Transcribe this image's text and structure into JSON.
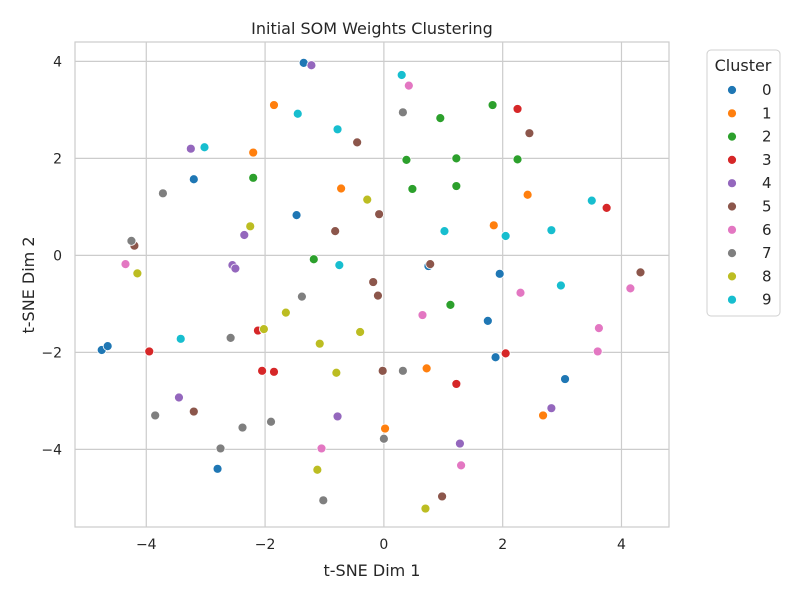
{
  "chart_data": {
    "type": "scatter",
    "title": "Initial SOM Weights Clustering",
    "xlabel": "t-SNE Dim 1",
    "ylabel": "t-SNE Dim 2",
    "xlim": [
      -5.2,
      4.8
    ],
    "ylim": [
      -5.6,
      4.4
    ],
    "xticks": [
      -4,
      -2,
      0,
      2,
      4
    ],
    "yticks": [
      -4,
      -2,
      0,
      2,
      4
    ],
    "tick_labels": {
      "x": [
        "−4",
        "−2",
        "0",
        "2",
        "4"
      ],
      "y": [
        "−4",
        "−2",
        "0",
        "2",
        "4"
      ]
    },
    "grid": true,
    "legend": {
      "title": "Cluster",
      "placement": "outside-right-top"
    },
    "series": [
      {
        "name": "0",
        "color": "#1f77b4",
        "points": [
          [
            -1.35,
            3.97
          ],
          [
            -3.2,
            1.57
          ],
          [
            -1.47,
            0.83
          ],
          [
            -4.75,
            -1.95
          ],
          [
            -4.65,
            -1.87
          ],
          [
            -2.8,
            -4.4
          ],
          [
            0.75,
            -0.22
          ],
          [
            1.95,
            -0.38
          ],
          [
            1.75,
            -1.35
          ],
          [
            1.88,
            -2.1
          ],
          [
            3.05,
            -2.55
          ]
        ]
      },
      {
        "name": "1",
        "color": "#ff7f0e",
        "points": [
          [
            -1.85,
            3.1
          ],
          [
            -2.2,
            2.12
          ],
          [
            -0.72,
            1.38
          ],
          [
            1.85,
            0.62
          ],
          [
            2.42,
            1.25
          ],
          [
            0.72,
            -2.33
          ],
          [
            0.02,
            -3.57
          ],
          [
            2.68,
            -3.3
          ]
        ]
      },
      {
        "name": "2",
        "color": "#2ca02c",
        "points": [
          [
            0.95,
            2.83
          ],
          [
            1.83,
            3.1
          ],
          [
            0.38,
            1.97
          ],
          [
            1.22,
            2.0
          ],
          [
            2.25,
            1.98
          ],
          [
            0.48,
            1.37
          ],
          [
            1.22,
            1.43
          ],
          [
            -2.2,
            1.6
          ],
          [
            -1.18,
            -0.08
          ],
          [
            1.12,
            -1.02
          ]
        ]
      },
      {
        "name": "3",
        "color": "#d62728",
        "points": [
          [
            2.25,
            3.02
          ],
          [
            3.75,
            0.98
          ],
          [
            -2.12,
            -1.55
          ],
          [
            -3.95,
            -1.98
          ],
          [
            -2.05,
            -2.38
          ],
          [
            -1.85,
            -2.4
          ],
          [
            1.22,
            -2.65
          ],
          [
            2.05,
            -2.02
          ]
        ]
      },
      {
        "name": "4",
        "color": "#9467bd",
        "points": [
          [
            -1.22,
            3.92
          ],
          [
            -3.25,
            2.2
          ],
          [
            -2.35,
            0.42
          ],
          [
            -2.55,
            -0.2
          ],
          [
            -2.5,
            -0.27
          ],
          [
            -3.45,
            -2.93
          ],
          [
            -0.78,
            -3.32
          ],
          [
            1.28,
            -3.88
          ],
          [
            2.82,
            -3.15
          ]
        ]
      },
      {
        "name": "5",
        "color": "#8c564b",
        "points": [
          [
            2.45,
            2.52
          ],
          [
            -0.45,
            2.33
          ],
          [
            -0.08,
            0.85
          ],
          [
            -0.82,
            0.5
          ],
          [
            -4.2,
            0.2
          ],
          [
            0.78,
            -0.18
          ],
          [
            -0.18,
            -0.55
          ],
          [
            -0.1,
            -0.83
          ],
          [
            4.32,
            -0.35
          ],
          [
            -0.02,
            -2.38
          ],
          [
            -3.2,
            -3.22
          ],
          [
            0.98,
            -4.97
          ]
        ]
      },
      {
        "name": "6",
        "color": "#e377c2",
        "points": [
          [
            0.42,
            3.5
          ],
          [
            -4.35,
            -0.18
          ],
          [
            2.3,
            -0.77
          ],
          [
            4.15,
            -0.68
          ],
          [
            0.65,
            -1.23
          ],
          [
            3.62,
            -1.5
          ],
          [
            3.6,
            -1.98
          ],
          [
            -1.05,
            -3.98
          ],
          [
            1.3,
            -4.33
          ]
        ]
      },
      {
        "name": "7",
        "color": "#7f7f7f",
        "points": [
          [
            0.32,
            2.95
          ],
          [
            -3.72,
            1.28
          ],
          [
            -4.25,
            0.3
          ],
          [
            -1.38,
            -0.85
          ],
          [
            -2.58,
            -1.7
          ],
          [
            0.32,
            -2.38
          ],
          [
            -3.85,
            -3.3
          ],
          [
            -2.38,
            -3.55
          ],
          [
            -1.9,
            -3.43
          ],
          [
            -2.75,
            -3.98
          ],
          [
            0.0,
            -3.78
          ],
          [
            -1.02,
            -5.05
          ]
        ]
      },
      {
        "name": "8",
        "color": "#bcbd22",
        "points": [
          [
            -0.28,
            1.15
          ],
          [
            -2.25,
            0.6
          ],
          [
            -4.15,
            -0.37
          ],
          [
            -1.65,
            -1.18
          ],
          [
            -2.02,
            -1.52
          ],
          [
            -0.4,
            -1.58
          ],
          [
            -1.08,
            -1.82
          ],
          [
            -0.8,
            -2.42
          ],
          [
            -1.12,
            -4.42
          ],
          [
            0.7,
            -5.22
          ]
        ]
      },
      {
        "name": "9",
        "color": "#17becf",
        "points": [
          [
            0.3,
            3.72
          ],
          [
            -1.45,
            2.92
          ],
          [
            -0.78,
            2.6
          ],
          [
            -3.02,
            2.23
          ],
          [
            3.5,
            1.13
          ],
          [
            1.02,
            0.5
          ],
          [
            2.05,
            0.4
          ],
          [
            2.82,
            0.52
          ],
          [
            -0.75,
            -0.2
          ],
          [
            2.98,
            -0.62
          ],
          [
            -3.42,
            -1.72
          ]
        ]
      }
    ]
  }
}
